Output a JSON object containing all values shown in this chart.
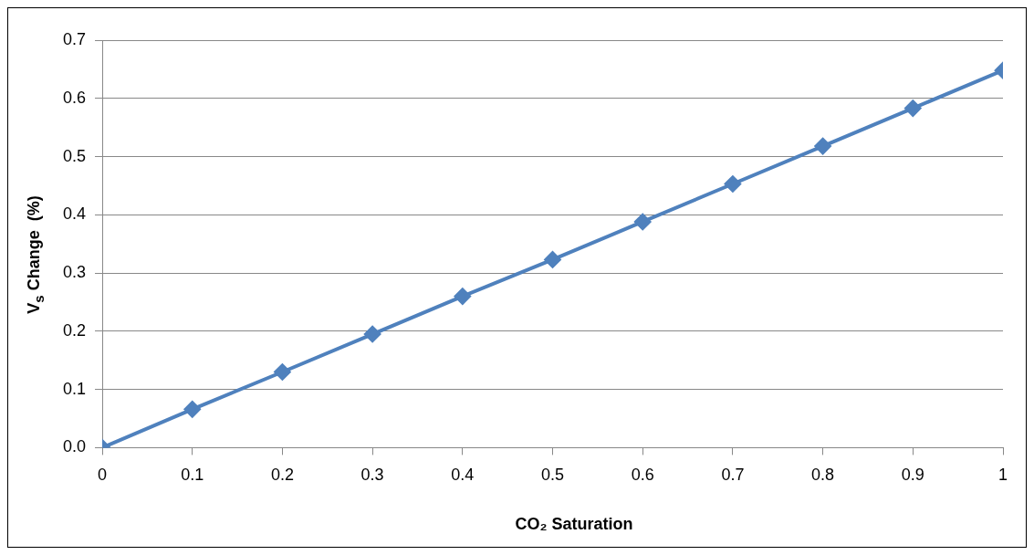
{
  "chart_data": {
    "type": "line",
    "xlabel": "CO₂ Saturation",
    "ylabel": "V$_{s}$ Change  (%)",
    "x": [
      0,
      0.1,
      0.2,
      0.3,
      0.4,
      0.5,
      0.6,
      0.7,
      0.8,
      0.9,
      1
    ],
    "series": [
      {
        "color": "#4f81bd",
        "values": [
          0,
          0.066,
          0.13,
          0.195,
          0.26,
          0.323,
          0.388,
          0.453,
          0.518,
          0.583,
          0.648
        ]
      }
    ],
    "xlim": [
      0,
      1
    ],
    "xticks": [
      0,
      0.1,
      0.2,
      0.3,
      0.4,
      0.5,
      0.6,
      0.7,
      0.8,
      0.9,
      1
    ],
    "ylim": [
      0,
      0.7
    ],
    "yticks": [
      {
        "value": 0,
        "label": "0.0"
      },
      0.1,
      0.2,
      0.3,
      0.4,
      0.5,
      0.6,
      0.7
    ],
    "grid": "y",
    "legend": false,
    "marker": "diamond",
    "line_style": "solid"
  }
}
